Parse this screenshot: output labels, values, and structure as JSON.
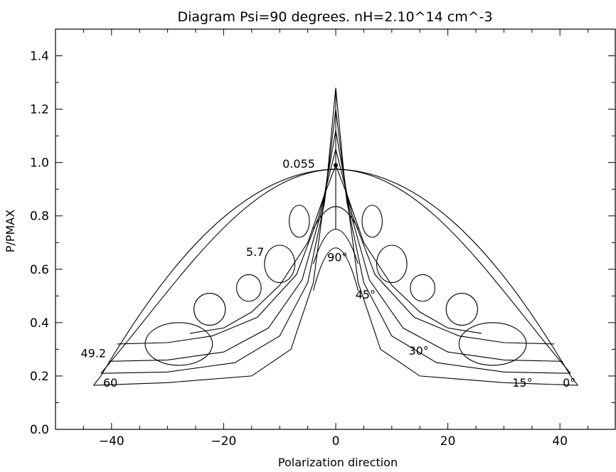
{
  "chart_data": {
    "type": "line",
    "title": "Diagram Psi=90 degrees. nH=2.10^14 cm^-3",
    "xlabel": "Polarization direction",
    "ylabel": "P/PMAX",
    "xlim": [
      -50,
      50
    ],
    "ylim": [
      0,
      1.5
    ],
    "xticks": [
      -40,
      -20,
      0,
      20,
      40
    ],
    "xtick_labels": [
      "−40",
      "−20",
      "0",
      "20",
      "40"
    ],
    "yticks": [
      0.0,
      0.2,
      0.4,
      0.6,
      0.8,
      1.0,
      1.2,
      1.4
    ],
    "ytick_labels": [
      "0.0",
      "0.2",
      "0.4",
      "0.6",
      "0.8",
      "1.0",
      "1.2",
      "1.4"
    ],
    "grid": false,
    "annotations": [
      {
        "text": "0.055",
        "x": -9.5,
        "y": 0.98
      },
      {
        "text": "5.7",
        "x": -16,
        "y": 0.65
      },
      {
        "text": "49.2",
        "x": -45.5,
        "y": 0.27
      },
      {
        "text": "60",
        "x": -41.5,
        "y": 0.16
      },
      {
        "text": "90°",
        "x": -1.5,
        "y": 0.63
      },
      {
        "text": "45°",
        "x": 3.5,
        "y": 0.49
      },
      {
        "text": "30°",
        "x": 13,
        "y": 0.28
      },
      {
        "text": "15°",
        "x": 31.5,
        "y": 0.16
      },
      {
        "text": "0°",
        "x": 40.5,
        "y": 0.16
      }
    ],
    "series": [
      {
        "values": [
          [
            -43.2,
            0.165
          ],
          [
            -30,
            0.175
          ],
          [
            -15,
            0.2
          ],
          [
            -8,
            0.3
          ],
          [
            -4,
            0.55
          ],
          [
            -1.5,
            0.95
          ],
          [
            0,
            1.28
          ],
          [
            1.5,
            0.95
          ],
          [
            4,
            0.55
          ],
          [
            8,
            0.3
          ],
          [
            15,
            0.2
          ],
          [
            30,
            0.175
          ],
          [
            43.2,
            0.165
          ]
        ]
      },
      {
        "values": [
          [
            -41.8,
            0.21
          ],
          [
            -30,
            0.215
          ],
          [
            -18,
            0.25
          ],
          [
            -10,
            0.35
          ],
          [
            -5,
            0.55
          ],
          [
            -2,
            0.85
          ],
          [
            0,
            1.2
          ],
          [
            2,
            0.85
          ],
          [
            5,
            0.55
          ],
          [
            10,
            0.35
          ],
          [
            18,
            0.25
          ],
          [
            30,
            0.215
          ],
          [
            41.8,
            0.21
          ]
        ]
      },
      {
        "values": [
          [
            -40.5,
            0.255
          ],
          [
            -30,
            0.26
          ],
          [
            -20,
            0.29
          ],
          [
            -12,
            0.38
          ],
          [
            -6,
            0.56
          ],
          [
            -2.5,
            0.82
          ],
          [
            0,
            1.12
          ],
          [
            2.5,
            0.82
          ],
          [
            6,
            0.56
          ],
          [
            12,
            0.38
          ],
          [
            20,
            0.29
          ],
          [
            30,
            0.26
          ],
          [
            40.5,
            0.255
          ]
        ]
      },
      {
        "values": [
          [
            -39,
            0.32
          ],
          [
            -30,
            0.325
          ],
          [
            -22,
            0.35
          ],
          [
            -14,
            0.42
          ],
          [
            -7,
            0.58
          ],
          [
            -3,
            0.8
          ],
          [
            0,
            1.05
          ],
          [
            3,
            0.8
          ],
          [
            7,
            0.58
          ],
          [
            14,
            0.42
          ],
          [
            22,
            0.35
          ],
          [
            30,
            0.325
          ],
          [
            39,
            0.32
          ]
        ]
      },
      {
        "values": [
          [
            -26,
            0.36
          ],
          [
            -20,
            0.38
          ],
          [
            -15,
            0.44
          ],
          [
            -10,
            0.54
          ],
          [
            -5,
            0.7
          ],
          [
            -2,
            0.88
          ],
          [
            0,
            0.99
          ],
          [
            2,
            0.88
          ],
          [
            5,
            0.7
          ],
          [
            10,
            0.54
          ],
          [
            15,
            0.44
          ],
          [
            20,
            0.38
          ],
          [
            26,
            0.36
          ]
        ]
      }
    ]
  }
}
